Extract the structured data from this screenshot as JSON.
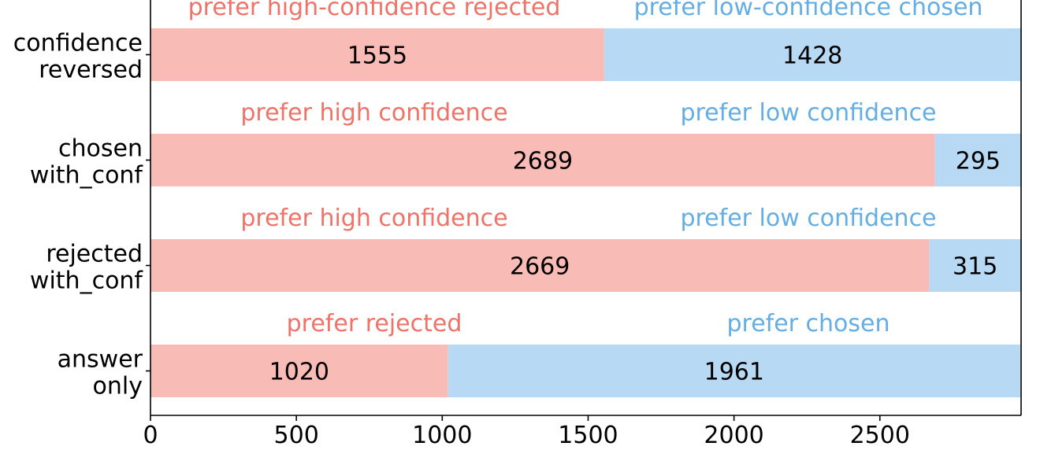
{
  "chart_data": {
    "type": "bar",
    "orientation": "horizontal",
    "stacked": true,
    "xlim": [
      0,
      2984
    ],
    "xticks": [
      0,
      500,
      1000,
      1500,
      2000,
      2500
    ],
    "grid": false,
    "colors": {
      "left": "#f9bbb5",
      "right": "#b8d9f3",
      "left_text": "#f07268",
      "right_text": "#63aee6"
    },
    "rows": [
      {
        "label_lines": [
          "confidence",
          "reversed"
        ],
        "left_value": 1555,
        "right_value": 1428,
        "left_text": "prefer high-confidence rejected",
        "right_text": "prefer low-confidence chosen"
      },
      {
        "label_lines": [
          "chosen",
          "with_conf"
        ],
        "left_value": 2689,
        "right_value": 295,
        "left_text": "prefer high confidence",
        "right_text": "prefer low confidence"
      },
      {
        "label_lines": [
          "rejected",
          "with_conf"
        ],
        "left_value": 2669,
        "right_value": 315,
        "left_text": "prefer high confidence",
        "right_text": "prefer low confidence"
      },
      {
        "label_lines": [
          "answer",
          "only"
        ],
        "left_value": 1020,
        "right_value": 1961,
        "left_text": "prefer rejected",
        "right_text": "prefer chosen"
      }
    ]
  }
}
